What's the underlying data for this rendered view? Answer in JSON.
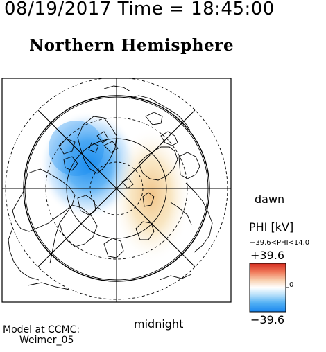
{
  "timestamp": "08/19/2017 Time = 18:45:00",
  "title": "Northern Hemisphere",
  "map": {
    "dawn_label": "dawn",
    "midnight_label": "midnight",
    "grid_style": "polar, dashed latitude circles, 8 radial meridians",
    "projection": "north polar stereographic"
  },
  "colorbar": {
    "title": "PHI [kV]",
    "range_label": "−39.6<PHI<14.0",
    "max_label": "+39.6",
    "min_label": "−39.6",
    "zero_label": "0",
    "min": -39.6,
    "max": 39.6,
    "data_min": -39.6,
    "data_max": 14.0,
    "colors": {
      "negative": "#1e90f0",
      "zero": "#ffffff",
      "positive": "#e83a2a"
    }
  },
  "potential_cells": [
    {
      "sign": "negative",
      "peak_kV": -39.6,
      "side": "dusk"
    },
    {
      "sign": "positive",
      "peak_kV": 14.0,
      "side": "dawn"
    }
  ],
  "credit": {
    "line1": "Model at CCMC:",
    "line2": "Weimer_05"
  }
}
